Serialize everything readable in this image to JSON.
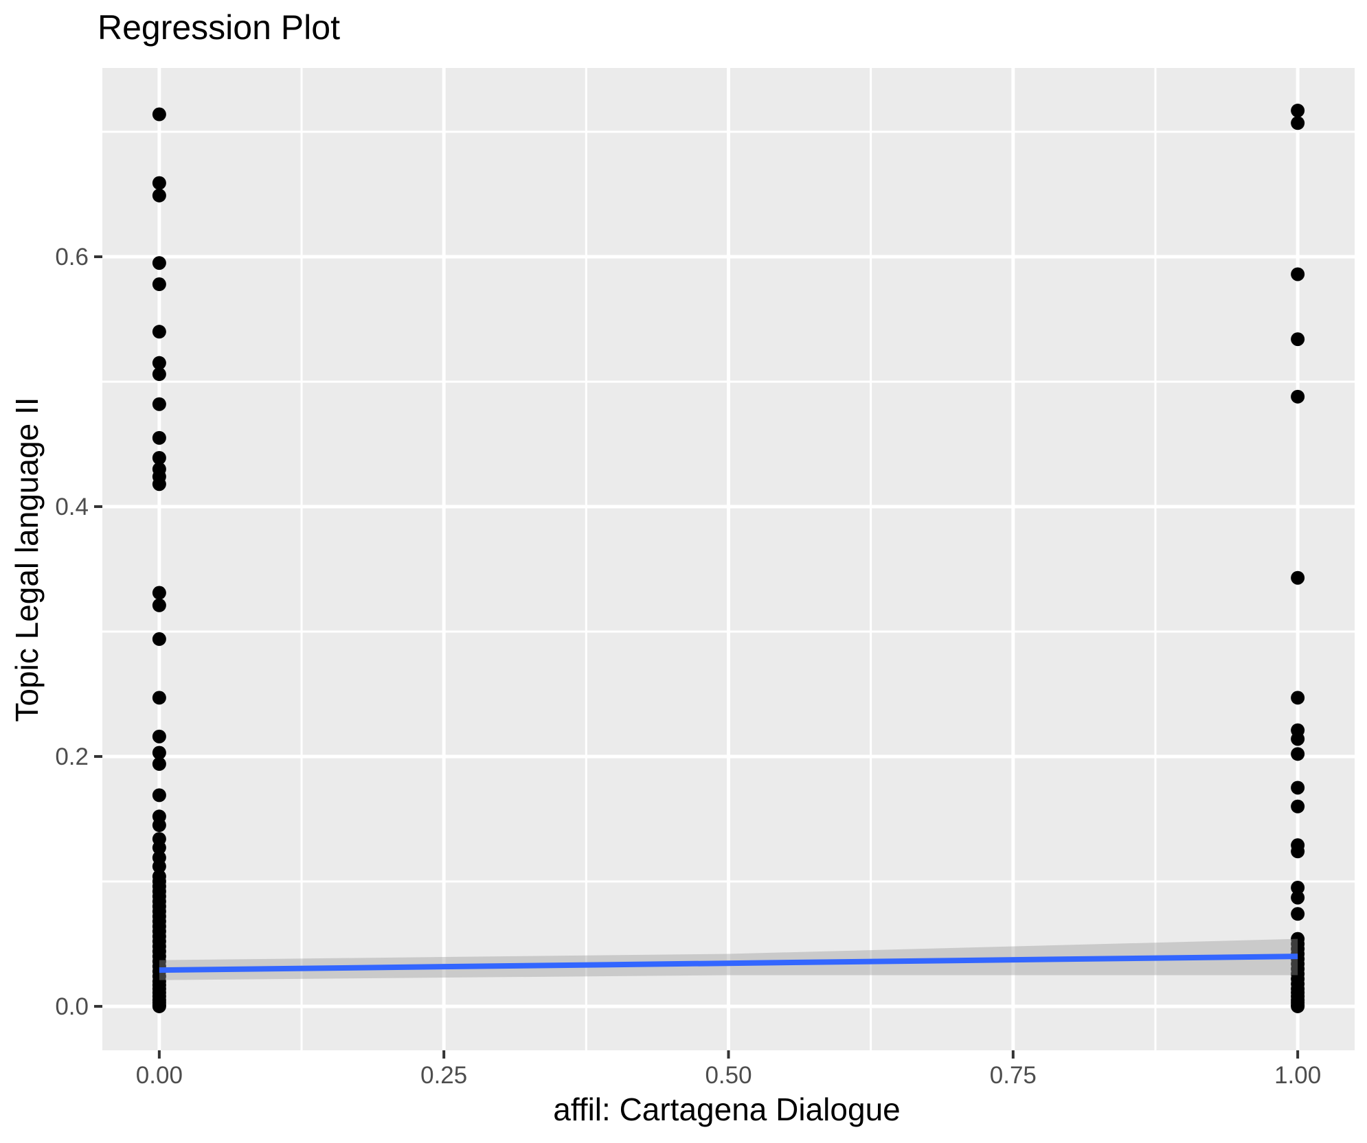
{
  "page": {
    "background": "#FFFFFF"
  },
  "chart_data": {
    "type": "scatter",
    "title": "Regression Plot",
    "xlabel": "affil: Cartagena Dialogue",
    "ylabel": "Topic Legal language II",
    "xlim": [
      -0.05,
      1.05
    ],
    "ylim": [
      -0.0352,
      0.7511
    ],
    "grid": true,
    "legend": false,
    "x_tick_values": [
      0,
      0.25,
      0.5,
      0.75,
      1.0
    ],
    "x_tick_labels": [
      "0.00",
      "0.25",
      "0.50",
      "0.75",
      "1.00"
    ],
    "x_minor_tick_values": [
      0.125,
      0.375,
      0.625,
      0.875
    ],
    "y_tick_values": [
      0,
      0.2,
      0.4,
      0.6
    ],
    "y_tick_labels": [
      "0.0",
      "0.2",
      "0.4",
      "0.6"
    ],
    "y_minor_tick_values": [
      0.1,
      0.3,
      0.5,
      0.7
    ],
    "colors": {
      "panel_bg": "#EBEBEB",
      "grid": "#FFFFFF",
      "points": "#000000",
      "regression_line": "#3366FF",
      "confidence_band": "#999999",
      "tick_labels": "#4D4D4D",
      "tick_marks": "#333333"
    },
    "series": [
      {
        "name": "affil = 0",
        "x": 0,
        "y": [
          0.714,
          0.659,
          0.649,
          0.595,
          0.578,
          0.54,
          0.515,
          0.506,
          0.482,
          0.455,
          0.439,
          0.43,
          0.424,
          0.418,
          0.331,
          0.321,
          0.294,
          0.247,
          0.216,
          0.203,
          0.194,
          0.169,
          0.152,
          0.145,
          0.134,
          0.127,
          0.119,
          0.112,
          0.104,
          0.1,
          0.096,
          0.092,
          0.088,
          0.084,
          0.08,
          0.076,
          0.072,
          0.068,
          0.064,
          0.06,
          0.056,
          0.052,
          0.048,
          0.044,
          0.04,
          0.036,
          0.032,
          0.028,
          0.024,
          0.02,
          0.017,
          0.014,
          0.011,
          0.008,
          0.005,
          0.003,
          0.001,
          0.0
        ]
      },
      {
        "name": "affil = 1",
        "x": 1,
        "y": [
          0.717,
          0.707,
          0.586,
          0.534,
          0.488,
          0.343,
          0.247,
          0.221,
          0.214,
          0.202,
          0.175,
          0.16,
          0.129,
          0.124,
          0.095,
          0.087,
          0.074,
          0.054,
          0.05,
          0.046,
          0.042,
          0.038,
          0.034,
          0.03,
          0.026,
          0.022,
          0.018,
          0.014,
          0.011,
          0.008,
          0.005,
          0.003,
          0.001,
          0.0
        ]
      }
    ],
    "regression_line": {
      "x": [
        0,
        1
      ],
      "y": [
        0.029,
        0.04
      ]
    },
    "confidence_band": {
      "x": [
        0,
        0.5,
        1
      ],
      "upper": [
        0.037,
        0.042,
        0.054
      ],
      "lower": [
        0.021,
        0.025,
        0.025
      ]
    },
    "point_radius_px": 10
  }
}
